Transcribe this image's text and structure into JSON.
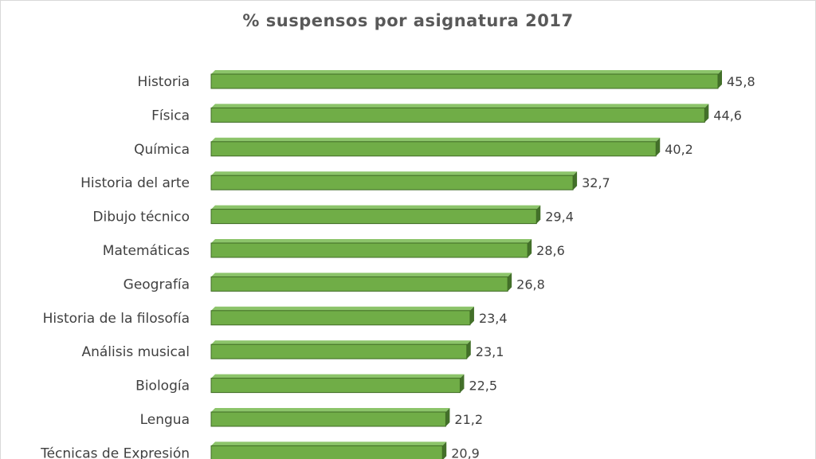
{
  "chart_data": {
    "type": "bar",
    "orientation": "horizontal",
    "title": "% suspensos por asignatura 2017",
    "categories": [
      "Historia",
      "Física",
      "Química",
      "Historia del arte",
      "Dibujo técnico",
      "Matemáticas",
      "Geografía",
      "Historia de la filosofía",
      "Análisis musical",
      "Biología",
      "Lengua",
      "Técnicas de Expresión"
    ],
    "values": [
      45.8,
      44.6,
      40.2,
      32.7,
      29.4,
      28.6,
      26.8,
      23.4,
      23.1,
      22.5,
      21.2,
      20.9
    ],
    "value_labels": [
      "45,8",
      "44,6",
      "40,2",
      "32,7",
      "29,4",
      "28,6",
      "26,8",
      "23,4",
      "23,1",
      "22,5",
      "21,2",
      "20,9"
    ],
    "xlim": [
      0,
      45.8
    ],
    "grid": false,
    "legend": "none",
    "colors": {
      "bar": "#70ad47",
      "bar_edge": "#3f6b24",
      "bar_side": "#43702a",
      "text": "#404040",
      "title": "#595959"
    }
  }
}
